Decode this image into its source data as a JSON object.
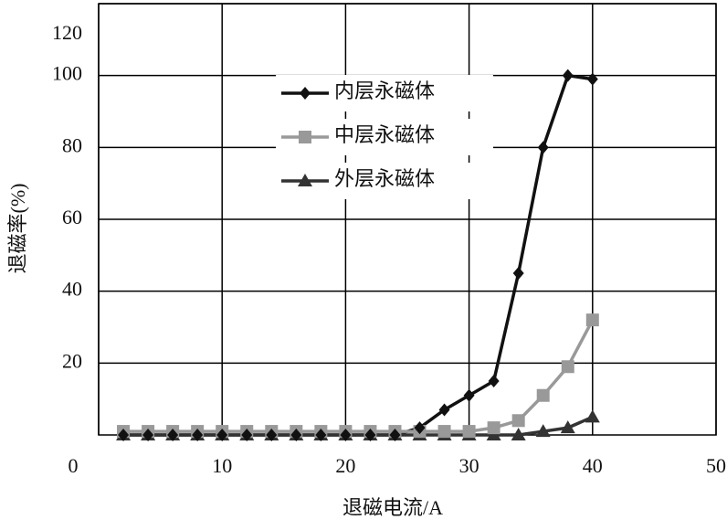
{
  "chart_data": {
    "type": "line",
    "xlabel": "退磁电流/A",
    "ylabel": "退磁率(%)",
    "xlim": [
      0,
      50
    ],
    "xticks": [
      0,
      10,
      20,
      30,
      40,
      50
    ],
    "ylim": [
      0,
      120
    ],
    "yticks": [
      20,
      40,
      60,
      80,
      100,
      120
    ],
    "grid": true,
    "legend": "upper-center",
    "x": [
      2,
      4,
      6,
      8,
      10,
      12,
      14,
      16,
      18,
      20,
      22,
      24,
      26,
      28,
      30,
      32,
      34,
      36,
      38,
      40
    ],
    "series": [
      {
        "name": "内层永磁体",
        "color": "#111111",
        "marker": "diamond",
        "values": [
          0,
          0,
          0,
          0,
          0,
          0,
          0,
          0,
          0,
          0,
          0,
          0,
          2,
          7,
          11,
          15,
          45,
          80,
          100,
          99
        ]
      },
      {
        "name": "中层永磁体",
        "color": "#999999",
        "marker": "square",
        "values": [
          1,
          1,
          1,
          1,
          1,
          1,
          1,
          1,
          1,
          1,
          1,
          1,
          1,
          1,
          1,
          2,
          4,
          11,
          19,
          32
        ]
      },
      {
        "name": "外层永磁体",
        "color": "#333333",
        "marker": "triangle",
        "values": [
          0,
          0,
          0,
          0,
          0,
          0,
          0,
          0,
          0,
          0,
          0,
          0,
          0,
          0,
          0,
          0,
          0,
          1,
          2,
          5
        ]
      }
    ]
  }
}
